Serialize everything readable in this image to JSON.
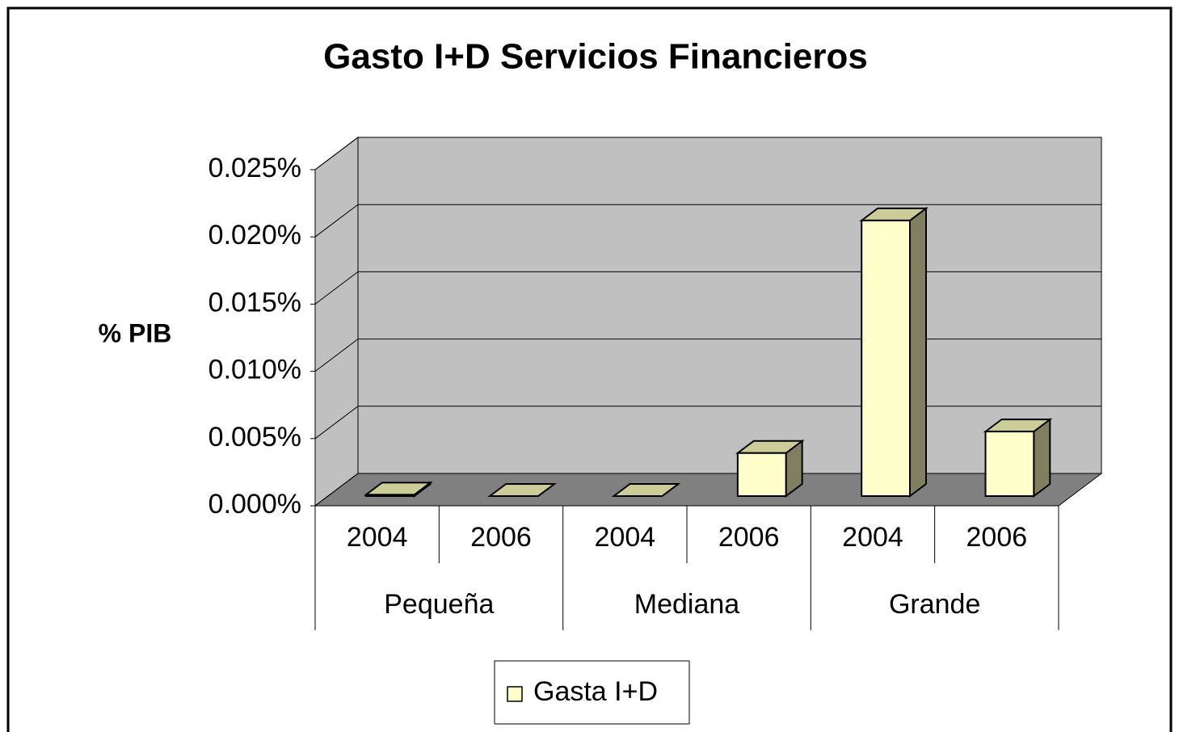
{
  "chart_data": {
    "type": "bar3d",
    "title": "Gasto I+D Servicios Financieros",
    "y_label": "% PIB",
    "categories": [
      "2004",
      "2006",
      "2004",
      "2006",
      "2004",
      "2006"
    ],
    "groups": [
      "Pequeña",
      "Mediana",
      "Grande"
    ],
    "series": [
      {
        "name": "Gasta I+D",
        "color": "#ffffcc",
        "values": [
          0.0001,
          0,
          0,
          0.0032,
          0.0205,
          0.0048
        ]
      }
    ],
    "ylim": [
      0,
      0.025
    ],
    "yticks": [
      {
        "value": 0,
        "label": "0.000%"
      },
      {
        "value": 0.005,
        "label": "0.005%"
      },
      {
        "value": 0.01,
        "label": "0.010%"
      },
      {
        "value": 0.015,
        "label": "0.015%"
      },
      {
        "value": 0.02,
        "label": "0.020%"
      },
      {
        "value": 0.025,
        "label": "0.025%"
      }
    ],
    "grid": true
  }
}
